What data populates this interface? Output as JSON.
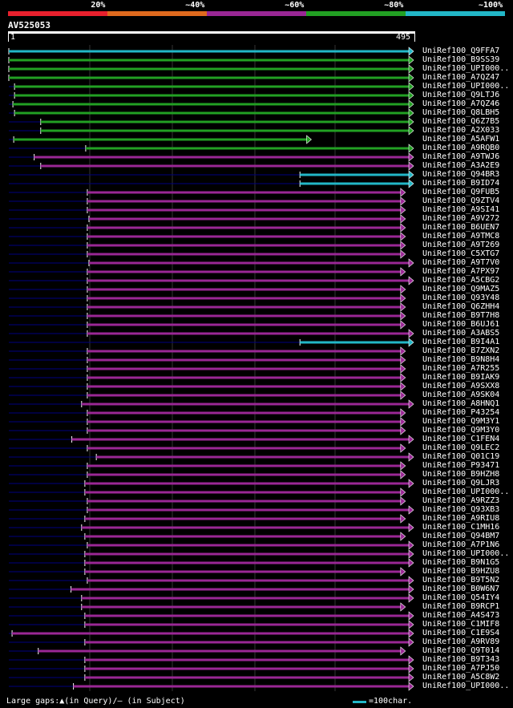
{
  "header": {
    "legend": [
      {
        "label": "20%",
        "color": "#e8202d"
      },
      {
        "label": "~40%",
        "color": "#e06a1e"
      },
      {
        "label": "~60%",
        "color": "#9a2795"
      },
      {
        "label": "~80%",
        "color": "#22a023"
      },
      {
        "label": "~100%",
        "color": "#22b7c7"
      }
    ],
    "query_id": "AV525053",
    "ruler_start": "1",
    "ruler_end": "495"
  },
  "chart_data": {
    "type": "alignment-overview",
    "query_length": 495,
    "query_start": 1,
    "hits": [
      {
        "name": "UniRef100_Q9FFA7",
        "color": "#22b7c7",
        "start": 1,
        "end": 495
      },
      {
        "name": "UniRef100_B9SS39",
        "color": "#22a023",
        "start": 1,
        "end": 495
      },
      {
        "name": "UniRef100_UPI000..",
        "color": "#22a023",
        "start": 1,
        "end": 495
      },
      {
        "name": "UniRef100_A7QZ47",
        "color": "#22a023",
        "start": 1,
        "end": 495
      },
      {
        "name": "UniRef100_UPI000..",
        "color": "#22a023",
        "start": 8,
        "end": 495
      },
      {
        "name": "UniRef100_Q9LTJ6",
        "color": "#22a023",
        "start": 8,
        "end": 495
      },
      {
        "name": "UniRef100_A7QZ46",
        "color": "#22a023",
        "start": 6,
        "end": 495
      },
      {
        "name": "UniRef100_Q8LBH5",
        "color": "#22a023",
        "start": 8,
        "end": 495
      },
      {
        "name": "UniRef100_Q6Z7B5",
        "color": "#22a023",
        "start": 40,
        "end": 495
      },
      {
        "name": "UniRef100_A2X033",
        "color": "#22a023",
        "start": 40,
        "end": 495
      },
      {
        "name": "UniRef100_A5AFW1",
        "color": "#22a023",
        "start": 7,
        "end": 370
      },
      {
        "name": "UniRef100_A9RQB0",
        "color": "#22a023",
        "start": 95,
        "end": 495
      },
      {
        "name": "UniRef100_A9TWJ6",
        "color": "#9a2795",
        "start": 32,
        "end": 495
      },
      {
        "name": "UniRef100_A3A2E9",
        "color": "#9a2795",
        "start": 40,
        "end": 495
      },
      {
        "name": "UniRef100_Q94BR3",
        "color": "#22b7c7",
        "start": 357,
        "end": 495
      },
      {
        "name": "UniRef100_B9ID74",
        "color": "#22b7c7",
        "start": 357,
        "end": 495
      },
      {
        "name": "UniRef100_Q9FUB5",
        "color": "#9a2795",
        "start": 97,
        "end": 485
      },
      {
        "name": "UniRef100_Q9ZTV4",
        "color": "#9a2795",
        "start": 97,
        "end": 485
      },
      {
        "name": "UniRef100_A9SI41",
        "color": "#9a2795",
        "start": 97,
        "end": 485
      },
      {
        "name": "UniRef100_A9V272",
        "color": "#9a2795",
        "start": 99,
        "end": 485
      },
      {
        "name": "UniRef100_B6UEN7",
        "color": "#9a2795",
        "start": 97,
        "end": 485
      },
      {
        "name": "UniRef100_A9TMC8",
        "color": "#9a2795",
        "start": 97,
        "end": 485
      },
      {
        "name": "UniRef100_A9T269",
        "color": "#9a2795",
        "start": 97,
        "end": 485
      },
      {
        "name": "UniRef100_C5XTG7",
        "color": "#9a2795",
        "start": 97,
        "end": 485
      },
      {
        "name": "UniRef100_A9T7V0",
        "color": "#9a2795",
        "start": 99,
        "end": 495
      },
      {
        "name": "UniRef100_A7PX97",
        "color": "#9a2795",
        "start": 97,
        "end": 485
      },
      {
        "name": "UniRef100_A5CBG2",
        "color": "#9a2795",
        "start": 97,
        "end": 495
      },
      {
        "name": "UniRef100_Q9MAZ5",
        "color": "#9a2795",
        "start": 97,
        "end": 485
      },
      {
        "name": "UniRef100_Q93Y48",
        "color": "#9a2795",
        "start": 97,
        "end": 485
      },
      {
        "name": "UniRef100_Q6ZHH4",
        "color": "#9a2795",
        "start": 97,
        "end": 485
      },
      {
        "name": "UniRef100_B9T7H8",
        "color": "#9a2795",
        "start": 97,
        "end": 485
      },
      {
        "name": "UniRef100_B6UJ61",
        "color": "#9a2795",
        "start": 97,
        "end": 485
      },
      {
        "name": "UniRef100_A3ABS5",
        "color": "#9a2795",
        "start": 97,
        "end": 495
      },
      {
        "name": "UniRef100_B9I4A1",
        "color": "#22b7c7",
        "start": 357,
        "end": 495
      },
      {
        "name": "UniRef100_B7ZXN2",
        "color": "#9a2795",
        "start": 97,
        "end": 485
      },
      {
        "name": "UniRef100_B9N8H4",
        "color": "#9a2795",
        "start": 97,
        "end": 485
      },
      {
        "name": "UniRef100_A7R255",
        "color": "#9a2795",
        "start": 97,
        "end": 485
      },
      {
        "name": "UniRef100_B9IAK9",
        "color": "#9a2795",
        "start": 97,
        "end": 485
      },
      {
        "name": "UniRef100_A9SXX8",
        "color": "#9a2795",
        "start": 97,
        "end": 485
      },
      {
        "name": "UniRef100_A9SK04",
        "color": "#9a2795",
        "start": 97,
        "end": 485
      },
      {
        "name": "UniRef100_A8HNQ1",
        "color": "#9a2795",
        "start": 90,
        "end": 495
      },
      {
        "name": "UniRef100_P43254",
        "color": "#9a2795",
        "start": 97,
        "end": 485
      },
      {
        "name": "UniRef100_Q9M3Y1",
        "color": "#9a2795",
        "start": 97,
        "end": 485
      },
      {
        "name": "UniRef100_Q9M3Y0",
        "color": "#9a2795",
        "start": 97,
        "end": 485
      },
      {
        "name": "UniRef100_C1FEN4",
        "color": "#9a2795",
        "start": 78,
        "end": 495
      },
      {
        "name": "UniRef100_Q9LEC2",
        "color": "#9a2795",
        "start": 97,
        "end": 485
      },
      {
        "name": "UniRef100_Q01C19",
        "color": "#9a2795",
        "start": 108,
        "end": 495
      },
      {
        "name": "UniRef100_P93471",
        "color": "#9a2795",
        "start": 97,
        "end": 485
      },
      {
        "name": "UniRef100_B9HZH8",
        "color": "#9a2795",
        "start": 97,
        "end": 485
      },
      {
        "name": "UniRef100_Q9LJR3",
        "color": "#9a2795",
        "start": 94,
        "end": 495
      },
      {
        "name": "UniRef100_UPI000..",
        "color": "#9a2795",
        "start": 94,
        "end": 485
      },
      {
        "name": "UniRef100_A9RZZ3",
        "color": "#9a2795",
        "start": 97,
        "end": 485
      },
      {
        "name": "UniRef100_Q93XB3",
        "color": "#9a2795",
        "start": 97,
        "end": 495
      },
      {
        "name": "UniRef100_A9RIU8",
        "color": "#9a2795",
        "start": 94,
        "end": 485
      },
      {
        "name": "UniRef100_C1MH16",
        "color": "#9a2795",
        "start": 90,
        "end": 495
      },
      {
        "name": "UniRef100_Q94BM7",
        "color": "#9a2795",
        "start": 94,
        "end": 485
      },
      {
        "name": "UniRef100_A7P1N6",
        "color": "#9a2795",
        "start": 97,
        "end": 495
      },
      {
        "name": "UniRef100_UPI000..",
        "color": "#9a2795",
        "start": 94,
        "end": 495
      },
      {
        "name": "UniRef100_B9N1G5",
        "color": "#9a2795",
        "start": 94,
        "end": 495
      },
      {
        "name": "UniRef100_B9HZU8",
        "color": "#9a2795",
        "start": 94,
        "end": 485
      },
      {
        "name": "UniRef100_B9T5N2",
        "color": "#9a2795",
        "start": 97,
        "end": 495
      },
      {
        "name": "UniRef100_B0W6N7",
        "color": "#9a2795",
        "start": 77,
        "end": 495
      },
      {
        "name": "UniRef100_Q54IY4",
        "color": "#9a2795",
        "start": 90,
        "end": 495
      },
      {
        "name": "UniRef100_B9RCP1",
        "color": "#9a2795",
        "start": 90,
        "end": 485
      },
      {
        "name": "UniRef100_A4S473",
        "color": "#9a2795",
        "start": 94,
        "end": 495
      },
      {
        "name": "UniRef100_C1MIF8",
        "color": "#9a2795",
        "start": 94,
        "end": 495
      },
      {
        "name": "UniRef100_C1E9S4",
        "color": "#9a2795",
        "start": 5,
        "end": 495
      },
      {
        "name": "UniRef100_A9RV89",
        "color": "#9a2795",
        "start": 94,
        "end": 495
      },
      {
        "name": "UniRef100_Q9T014",
        "color": "#9a2795",
        "start": 37,
        "end": 485
      },
      {
        "name": "UniRef100_B9T343",
        "color": "#9a2795",
        "start": 94,
        "end": 495
      },
      {
        "name": "UniRef100_A7PJ50",
        "color": "#9a2795",
        "start": 94,
        "end": 495
      },
      {
        "name": "UniRef100_A5C8W2",
        "color": "#9a2795",
        "start": 94,
        "end": 495
      },
      {
        "name": "UniRef100_UPI000..",
        "color": "#9a2795",
        "start": 80,
        "end": 495
      }
    ]
  },
  "footer": {
    "gap_legend": "Large gaps:▲(in Query)/– (in Subject)",
    "scale_label": "=100char."
  },
  "colors": {
    "background": "#000000",
    "thin_line": "#000080",
    "gap_marker": "#ffff99",
    "text": "#ffffff"
  }
}
